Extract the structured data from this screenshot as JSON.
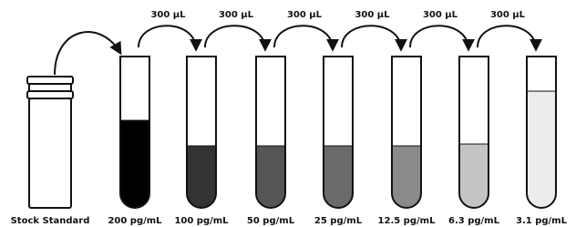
{
  "stock": {
    "label": "Stock Standard"
  },
  "transfers": [
    {
      "label": "300 μL"
    },
    {
      "label": "300 μL"
    },
    {
      "label": "300 μL"
    },
    {
      "label": "300 μL"
    },
    {
      "label": "300 μL"
    },
    {
      "label": "300 μL"
    }
  ],
  "tubes": [
    {
      "label": "200 pg/mL"
    },
    {
      "label": "100 pg/mL"
    },
    {
      "label": "50 pg/mL"
    },
    {
      "label": "25 pg/mL"
    },
    {
      "label": "12.5 pg/mL"
    },
    {
      "label": "6.3 pg/mL"
    },
    {
      "label": "3.1 pg/mL"
    }
  ]
}
